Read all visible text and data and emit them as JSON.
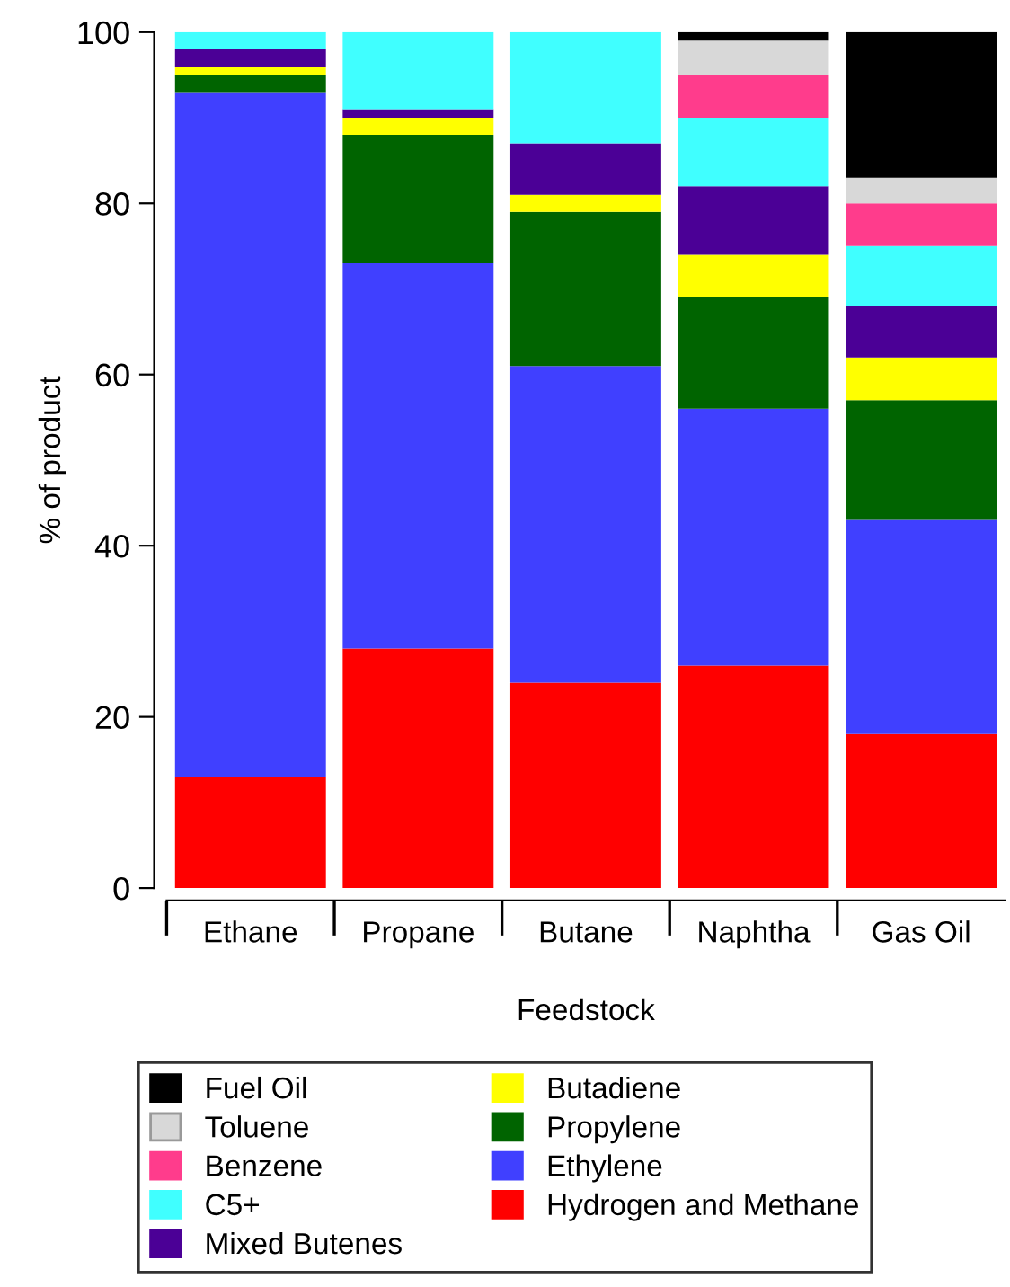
{
  "chart_data": {
    "type": "bar",
    "stacked": true,
    "xlabel": "Feedstock",
    "ylabel": "% of product",
    "categories": [
      "Ethane",
      "Propane",
      "Butane",
      "Naphtha",
      "Gas Oil"
    ],
    "series": [
      {
        "name": "Hydrogen and Methane",
        "color": "#ff0000",
        "values": [
          13,
          28,
          24,
          26,
          18
        ]
      },
      {
        "name": "Ethylene",
        "color": "#4040ff",
        "values": [
          80,
          45,
          37,
          30,
          25
        ]
      },
      {
        "name": "Propylene",
        "color": "#006400",
        "values": [
          2,
          15,
          18,
          13,
          14
        ]
      },
      {
        "name": "Butadiene",
        "color": "#ffff00",
        "values": [
          1,
          2,
          2,
          5,
          5
        ]
      },
      {
        "name": "Mixed Butenes",
        "color": "#4b0096",
        "values": [
          2,
          1,
          6,
          8,
          6
        ]
      },
      {
        "name": "C5+",
        "color": "#40ffff",
        "values": [
          2,
          9,
          13,
          8,
          7
        ]
      },
      {
        "name": "Benzene",
        "color": "#ff3c8c",
        "values": [
          0,
          0,
          0,
          5,
          5
        ]
      },
      {
        "name": "Toluene",
        "color": "#d8d8d8",
        "values": [
          0,
          0,
          0,
          4,
          3
        ]
      },
      {
        "name": "Fuel Oil",
        "color": "#000000",
        "values": [
          0,
          0,
          0,
          1,
          17
        ]
      }
    ],
    "ylim": [
      0,
      100
    ],
    "yticks": [
      0,
      20,
      40,
      60,
      80,
      100
    ],
    "grid": false,
    "legend": "bottom"
  }
}
